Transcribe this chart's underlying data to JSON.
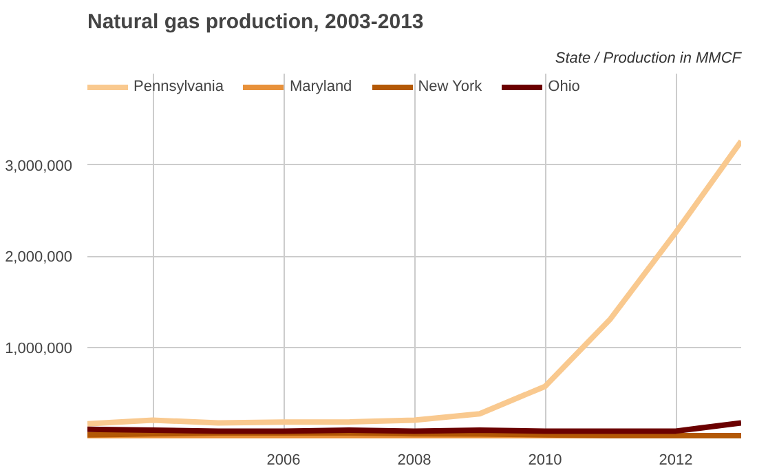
{
  "chart_data": {
    "type": "line",
    "title": "Natural gas production, 2003-2013",
    "subtitle": "State / Production in MMCF",
    "x": [
      2003,
      2004,
      2005,
      2006,
      2007,
      2008,
      2009,
      2010,
      2011,
      2012,
      2013
    ],
    "series": [
      {
        "name": "Pennsylvania",
        "color": "#f9c98f",
        "values": [
          160000,
          200000,
          170000,
          180000,
          180000,
          200000,
          270000,
          570000,
          1310000,
          2260000,
          3260000
        ]
      },
      {
        "name": "Maryland",
        "color": "#e8913a",
        "values": [
          0,
          0,
          0,
          0,
          0,
          0,
          0,
          0,
          0,
          0,
          0
        ]
      },
      {
        "name": "New York",
        "color": "#b35806",
        "values": [
          40000,
          50000,
          60000,
          60000,
          60000,
          50000,
          50000,
          40000,
          30000,
          30000,
          30000
        ]
      },
      {
        "name": "Ohio",
        "color": "#6b0000",
        "values": [
          100000,
          90000,
          80000,
          80000,
          90000,
          80000,
          90000,
          80000,
          80000,
          80000,
          170000
        ]
      }
    ],
    "xlim": [
      2003,
      2013
    ],
    "ylim": [
      0,
      4000000
    ],
    "xticks": [
      {
        "value": 2004,
        "label": null
      },
      2006,
      2008,
      2010,
      2012
    ],
    "yticks": [
      {
        "value": 1000000,
        "label": "1,000,000"
      },
      {
        "value": 2000000,
        "label": "2,000,000"
      },
      {
        "value": 3000000,
        "label": "3,000,000"
      }
    ],
    "grid": true,
    "legend": "top left",
    "marker": "none",
    "line_style": "solid"
  }
}
